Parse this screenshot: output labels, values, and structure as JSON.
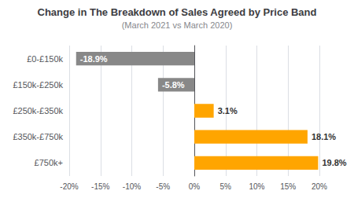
{
  "chart_data": {
    "type": "bar",
    "orientation": "horizontal",
    "title": "Change in The Breakdown of Sales Agreed by Price Band",
    "subtitle": "(March 2021 vs March 2020)",
    "categories": [
      "£0-£150k",
      "£150k-£250k",
      "£250k-£350k",
      "£350k-£750k",
      "£750k+"
    ],
    "values": [
      -18.9,
      -5.8,
      3.1,
      18.1,
      19.8
    ],
    "value_labels": [
      "-18.9%",
      "-5.8%",
      "3.1%",
      "18.1%",
      "19.8%"
    ],
    "data_labels": true,
    "colors": [
      "#888888",
      "#888888",
      "#FFA500",
      "#FFA500",
      "#FFA500"
    ],
    "xlim": [
      -20,
      20
    ],
    "xticks": [
      {
        "value": -20,
        "label": "-20%"
      },
      {
        "value": -15,
        "label": "-15%"
      },
      {
        "value": -10,
        "label": "-10%"
      },
      {
        "value": -5,
        "label": "-5%"
      },
      {
        "value": 0,
        "label": "0%"
      },
      {
        "value": 5,
        "label": "5%"
      },
      {
        "value": 10,
        "label": "10%"
      },
      {
        "value": 15,
        "label": "15%"
      },
      {
        "value": 20,
        "label": "20%"
      }
    ],
    "grid": true
  }
}
